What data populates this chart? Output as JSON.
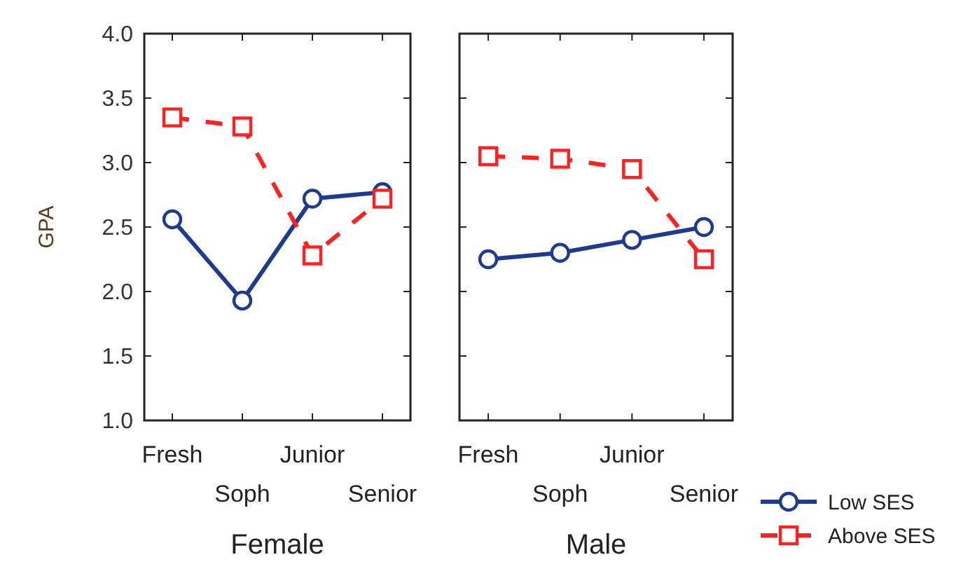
{
  "chart_data": [
    {
      "type": "line",
      "xlabel": "Female",
      "ylabel": "GPA",
      "categories": [
        "Fresh",
        "Soph",
        "Junior",
        "Senior"
      ],
      "ylim": [
        1.0,
        4.0
      ],
      "yticks": [
        {
          "value": 1,
          "label": "1.0"
        },
        1.5,
        {
          "value": 2,
          "label": "2.0"
        },
        2.5,
        {
          "value": 3,
          "label": "3.0"
        },
        3.5,
        {
          "value": 4,
          "label": "4.0"
        }
      ],
      "grid": false,
      "legend": false,
      "series": [
        {
          "color": "#1f3a93",
          "marker": "circle",
          "line_style": "solid",
          "values": [
            2.56,
            1.93,
            2.72,
            2.77
          ]
        },
        {
          "color": "#ff2020",
          "marker": "square",
          "line_style": "dashed",
          "values": [
            3.35,
            3.28,
            2.28,
            2.72
          ]
        }
      ]
    },
    {
      "type": "line",
      "xlabel": "Male",
      "categories": [
        "Fresh",
        "Soph",
        "Junior",
        "Senior"
      ],
      "ylim": [
        1.0,
        4.0
      ],
      "yticks": [
        1,
        1.5,
        2,
        2.5,
        3,
        3.5,
        4
      ],
      "tick_labels": "x",
      "grid": false,
      "legend": "bottom right",
      "series": [
        {
          "name": "Low SES",
          "color": "#1f3a93",
          "marker": "circle",
          "line_style": "solid",
          "values": [
            2.25,
            2.3,
            2.4,
            2.5
          ]
        },
        {
          "name": "Above SES",
          "color": "#ff2020",
          "marker": "square",
          "line_style": "dashed",
          "values": [
            3.05,
            3.03,
            2.95,
            2.25
          ]
        }
      ]
    }
  ]
}
